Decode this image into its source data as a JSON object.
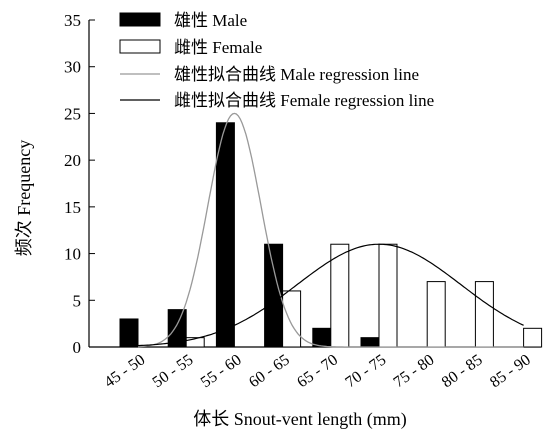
{
  "chart_data": {
    "type": "bar",
    "title": "",
    "xlabel": "体长  Snout-vent length (mm)",
    "ylabel": "频次  Frequency",
    "ylim": [
      0,
      35
    ],
    "yticks": [
      0,
      5,
      10,
      15,
      20,
      25,
      30,
      35
    ],
    "categories": [
      "45 - 50",
      "50 - 55",
      "55 - 60",
      "60 - 65",
      "65 - 70",
      "70 - 75",
      "75 - 80",
      "80 - 85",
      "85 - 90"
    ],
    "series": [
      {
        "name": "雄性  Male",
        "values": [
          3,
          4,
          24,
          11,
          2,
          1,
          0,
          0,
          0
        ],
        "fill": "#000000"
      },
      {
        "name": "雌性  Female",
        "values": [
          0,
          1,
          0,
          6,
          11,
          11,
          7,
          7,
          2
        ],
        "fill": "#ffffff"
      }
    ],
    "regression_lines": [
      {
        "name": "雄性拟合曲线  Male regression line",
        "color": "#999999",
        "peak_x": "55 - 60",
        "peak_value": 25
      },
      {
        "name": "雌性拟合曲线  Female regression line",
        "color": "#000000",
        "peak_x": "70 - 75",
        "peak_value": 11
      }
    ],
    "legend_position": "top-left",
    "grid": false
  }
}
